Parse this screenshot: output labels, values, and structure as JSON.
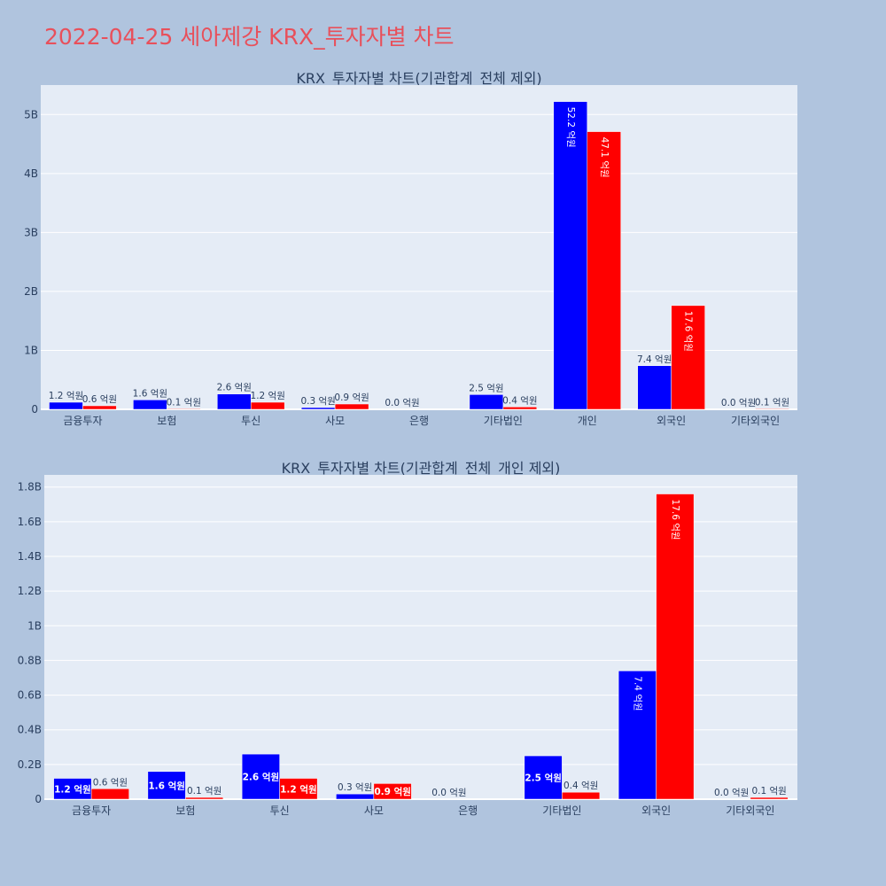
{
  "page": {
    "title": "2022-04-25 세아제강 KRX_투자자별 차트"
  },
  "colors": {
    "buy": "#0000ff",
    "sell": "#ff0000",
    "plot_bg": "#e5ecf6",
    "page_bg": "#b0c4de",
    "title": "#e8505b"
  },
  "chart_data": [
    {
      "type": "bar",
      "title": "KRX_투자자별 차트(기관합계_전체 제외)",
      "categories": [
        "금융투자",
        "보험",
        "투신",
        "사모",
        "은행",
        "기타법인",
        "개인",
        "외국인",
        "기타외국인"
      ],
      "series": [
        {
          "color": "#0000ff",
          "values": [
            0.12,
            0.16,
            0.26,
            0.03,
            0.0,
            0.25,
            5.22,
            0.74,
            0.0
          ],
          "labels": [
            "1.2 억원",
            "1.6 억원",
            "2.6 억원",
            "0.3 억원",
            "0.0 억원",
            "2.5 억원",
            "52.2 억원",
            "7.4 억원",
            "0.0 억원"
          ]
        },
        {
          "color": "#ff0000",
          "values": [
            0.06,
            0.01,
            0.12,
            0.09,
            0.0,
            0.04,
            4.71,
            1.76,
            0.01
          ],
          "labels": [
            "0.6 억원",
            "0.1 억원",
            "1.2 억원",
            "0.9 억원",
            "",
            "0.4 억원",
            "47.1 억원",
            "17.6 억원",
            "0.1 억원"
          ]
        }
      ],
      "yticks": [
        0,
        1,
        2,
        3,
        4,
        5
      ],
      "ytick_labels": [
        "0",
        "1B",
        "2B",
        "3B",
        "4B",
        "5B"
      ],
      "ylim": [
        0,
        5.5
      ],
      "grid": true
    },
    {
      "type": "bar",
      "title": "KRX_투자자별 차트(기관합계_전체_개인 제외)",
      "categories": [
        "금융투자",
        "보험",
        "투신",
        "사모",
        "은행",
        "기타법인",
        "외국인",
        "기타외국인"
      ],
      "series": [
        {
          "color": "#0000ff",
          "values": [
            0.12,
            0.16,
            0.26,
            0.03,
            0.0,
            0.25,
            0.74,
            0.0
          ],
          "labels": [
            "1.2 억원",
            "1.6 억원",
            "2.6 억원",
            "0.3 억원",
            "0.0 억원",
            "2.5 억원",
            "7.4 억원",
            "0.0 억원"
          ]
        },
        {
          "color": "#ff0000",
          "values": [
            0.06,
            0.01,
            0.12,
            0.09,
            0.0,
            0.04,
            1.76,
            0.01
          ],
          "labels": [
            "0.6 억원",
            "0.1 억원",
            "1.2 억원",
            "0.9 억원",
            "",
            "0.4 억원",
            "17.6 억원",
            "0.1 억원"
          ]
        }
      ],
      "yticks": [
        0,
        0.2,
        0.4,
        0.6,
        0.8,
        1,
        1.2,
        1.4,
        1.6,
        1.8
      ],
      "ytick_labels": [
        "0",
        "0.2B",
        "0.4B",
        "0.6B",
        "0.8B",
        "1B",
        "1.2B",
        "1.4B",
        "1.6B",
        "1.8B"
      ],
      "ylim": [
        0,
        1.87
      ],
      "grid": true
    }
  ]
}
